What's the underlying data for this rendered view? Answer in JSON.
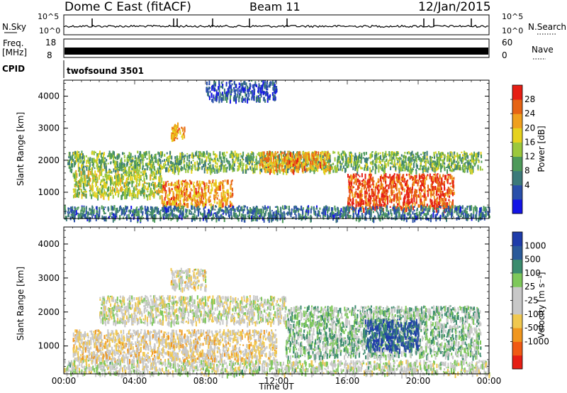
{
  "header": {
    "station": "Dome C East (fitACF)",
    "beam": "Beam 11",
    "date": "12/Jan/2015"
  },
  "top_panels": {
    "nsky_label": "N.Sky",
    "nsky_ticks": [
      "10^5",
      "10^0"
    ],
    "nsearch_label": "N.Search",
    "nsearch_ticks": [
      "10^5",
      "10^0"
    ],
    "freq_label": "Freq.",
    "freq_unit": "[MHz]",
    "freq_ticks": [
      "18",
      "8"
    ],
    "nave_label": "Nave",
    "nave_ticks": [
      "60",
      "0"
    ],
    "cpid_label": "CPID",
    "cpid_value": "twofsound 3501"
  },
  "chart_data": [
    {
      "type": "heatmap",
      "name": "power",
      "ylabel": "Slant Range [km]",
      "yticks": [
        "4000",
        "3000",
        "2000",
        "1000"
      ],
      "ylim": [
        180,
        4500
      ],
      "xlim": [
        "00:00",
        "24:00"
      ],
      "colorbar_label": "Power [dB]",
      "colorbar_ticks": [
        "28",
        "24",
        "20",
        "16",
        "12",
        "8",
        "4"
      ],
      "colorscale": [
        "#1414e6",
        "#2a4faa",
        "#3c7a7a",
        "#4e9a5a",
        "#9cc83c",
        "#e6d21e",
        "#f0a01e",
        "#e66414",
        "#e61e14"
      ],
      "color_range": [
        0,
        30
      ],
      "echo_regions": [
        {
          "t_start": 0.2,
          "t_end": 23.6,
          "r_min": 1700,
          "r_max": 2300,
          "level": 13
        },
        {
          "t_start": 0.5,
          "t_end": 5.5,
          "r_min": 900,
          "r_max": 1700,
          "level": 16
        },
        {
          "t_start": 5.5,
          "t_end": 9.5,
          "r_min": 600,
          "r_max": 1400,
          "level": 22
        },
        {
          "t_start": 16.0,
          "t_end": 22.0,
          "r_min": 500,
          "r_max": 1600,
          "level": 26
        },
        {
          "t_start": 11.0,
          "t_end": 15.0,
          "r_min": 1700,
          "r_max": 2300,
          "level": 22
        },
        {
          "t_start": 0.0,
          "t_end": 24.0,
          "r_min": 200,
          "r_max": 600,
          "level": 8
        },
        {
          "t_start": 6.0,
          "t_end": 6.8,
          "r_min": 2700,
          "r_max": 3200,
          "level": 22
        },
        {
          "t_start": 8.0,
          "t_end": 12.0,
          "r_min": 3900,
          "r_max": 4500,
          "level": 6
        }
      ]
    },
    {
      "type": "heatmap",
      "name": "velocity",
      "ylabel": "Slant Range [km]",
      "yticks": [
        "4000",
        "3000",
        "2000",
        "1000"
      ],
      "ylim": [
        180,
        4500
      ],
      "xlim": [
        "00:00",
        "24:00"
      ],
      "xticks": [
        "00:00",
        "04:00",
        "08:00",
        "12:00",
        "16:00",
        "20:00",
        "00:00"
      ],
      "xlabel": "Time UT",
      "colorbar_label": "Velocity [m s⁻¹]",
      "colorbar_ticks": [
        "1000",
        "500",
        "100",
        "25",
        "-25",
        "-100",
        "-500",
        "-1000"
      ],
      "colorscale": [
        "#e61e14",
        "#f05a14",
        "#f0961e",
        "#f0c850",
        "#c8c8c8",
        "#c8c8c8",
        "#7ec85a",
        "#3c8c6e",
        "#2a5a9a",
        "#1e3caa"
      ],
      "color_range": [
        -1000,
        1000
      ],
      "echo_regions": [
        {
          "t_start": 2.0,
          "t_end": 12.5,
          "r_min": 1700,
          "r_max": 2500,
          "level": 0
        },
        {
          "t_start": 0.5,
          "t_end": 12.0,
          "r_min": 600,
          "r_max": 1500,
          "level": -150
        },
        {
          "t_start": 12.5,
          "t_end": 23.5,
          "r_min": 700,
          "r_max": 2200,
          "level": 250
        },
        {
          "t_start": 17.0,
          "t_end": 20.0,
          "r_min": 900,
          "r_max": 1800,
          "level": 800
        },
        {
          "t_start": 0.0,
          "t_end": 24.0,
          "r_min": 200,
          "r_max": 600,
          "level": 60
        },
        {
          "t_start": 6.0,
          "t_end": 8.0,
          "r_min": 2700,
          "r_max": 3300,
          "level": -80
        }
      ]
    }
  ]
}
